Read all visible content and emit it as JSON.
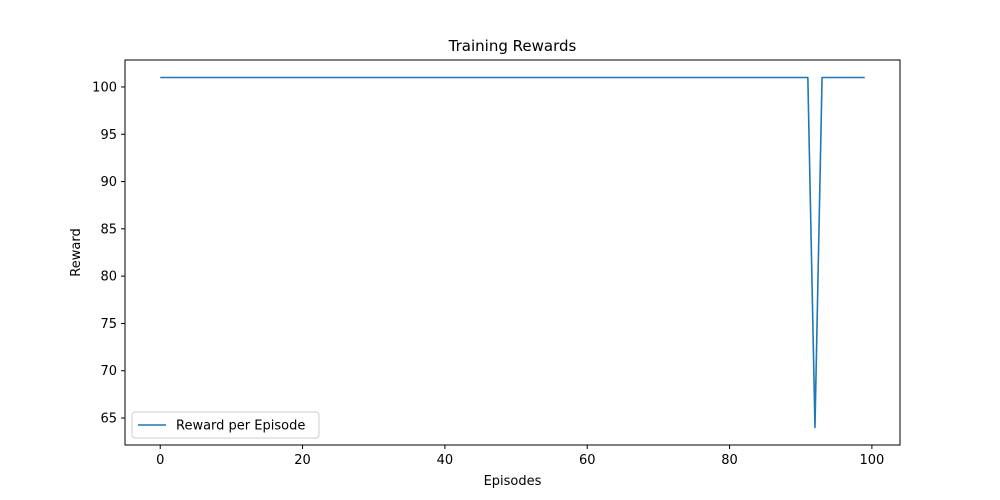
{
  "chart_data": {
    "type": "line",
    "title": "Training Rewards",
    "xlabel": "Episodes",
    "ylabel": "Reward",
    "xlim": [
      -4.95,
      103.95
    ],
    "ylim": [
      62.15,
      102.85
    ],
    "xticks": [
      0,
      20,
      40,
      60,
      80,
      100
    ],
    "yticks": [
      65,
      70,
      75,
      80,
      85,
      90,
      95,
      100
    ],
    "grid": false,
    "legend": "lower-left",
    "series": [
      {
        "name": "Reward per Episode",
        "color": "#1f77b4",
        "x": [
          0,
          91,
          92,
          93,
          99
        ],
        "y": [
          101,
          101,
          64,
          101,
          101
        ]
      }
    ]
  }
}
